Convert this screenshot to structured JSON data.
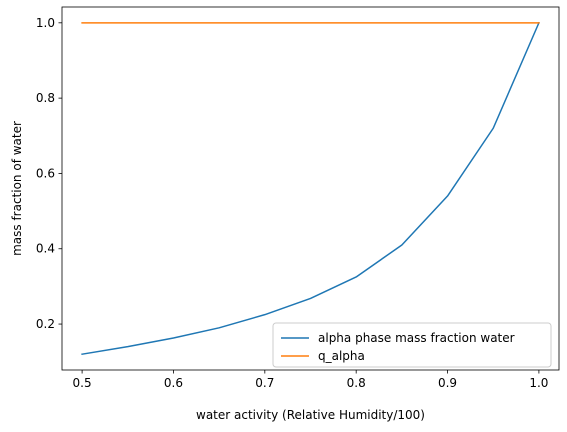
{
  "chart_data": {
    "type": "line",
    "title": "",
    "xlabel": "water activity (Relative Humidity/100)",
    "ylabel": "mass fraction of water",
    "xlim": [
      0.478,
      1.022
    ],
    "ylim": [
      0.078,
      1.042
    ],
    "xticks": [
      0.5,
      0.6,
      0.7,
      0.8,
      0.9,
      1.0
    ],
    "xtick_labels": [
      "0.5",
      "0.6",
      "0.7",
      "0.8",
      "0.9",
      "1.0"
    ],
    "yticks": [
      0.2,
      0.4,
      0.6,
      0.8,
      1.0
    ],
    "ytick_labels": [
      "0.2",
      "0.4",
      "0.6",
      "0.8",
      "1.0"
    ],
    "grid": false,
    "legend_position": "lower-right",
    "series": [
      {
        "name": "alpha phase mass fraction water",
        "color": "#1f77b4",
        "x": [
          0.5,
          0.55,
          0.6,
          0.65,
          0.7,
          0.75,
          0.8,
          0.85,
          0.9,
          0.95,
          1.0
        ],
        "y": [
          0.12,
          0.14,
          0.163,
          0.19,
          0.225,
          0.268,
          0.325,
          0.41,
          0.54,
          0.72,
          1.0
        ]
      },
      {
        "name": "q_alpha",
        "color": "#ff7f0e",
        "x": [
          0.5,
          1.0
        ],
        "y": [
          1.0,
          1.0
        ]
      }
    ]
  }
}
